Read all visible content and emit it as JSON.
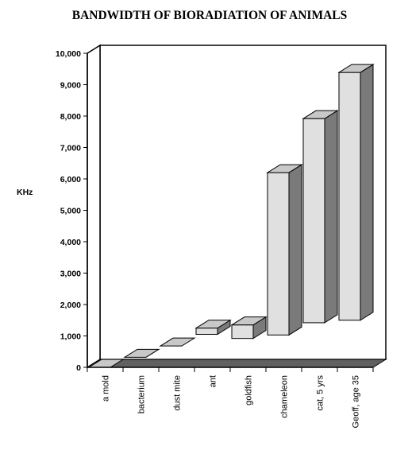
{
  "chart_data": {
    "type": "bar",
    "title": "BANDWIDTH OF BIORADIATION OF ANIMALS",
    "ylabel": "KHz",
    "xlabel": "",
    "ylim": [
      0,
      10000
    ],
    "yticks": [
      "0",
      "1,000",
      "2,000",
      "3,000",
      "4,000",
      "5,000",
      "6,000",
      "7,000",
      "8,000",
      "9,000",
      "10,000"
    ],
    "categories": [
      "a mold",
      "bacterium",
      "dust mite",
      "ant",
      "goldfish",
      "chameleon",
      "cat, 5 yrs",
      "Geoff, age 35"
    ],
    "ranges": [
      [
        0,
        0
      ],
      [
        320,
        320
      ],
      [
        680,
        680
      ],
      [
        1050,
        1250
      ],
      [
        920,
        1350
      ],
      [
        1030,
        6200
      ],
      [
        1420,
        7920
      ],
      [
        1500,
        9390
      ]
    ],
    "style": "3d-floating-bars",
    "colors": {
      "bar_face": "#e0e0e0",
      "bar_top": "#c8c8c8",
      "bar_side": "#7a7a7a",
      "floor": "#606060",
      "wall": "#ffffff"
    },
    "grid": false
  }
}
